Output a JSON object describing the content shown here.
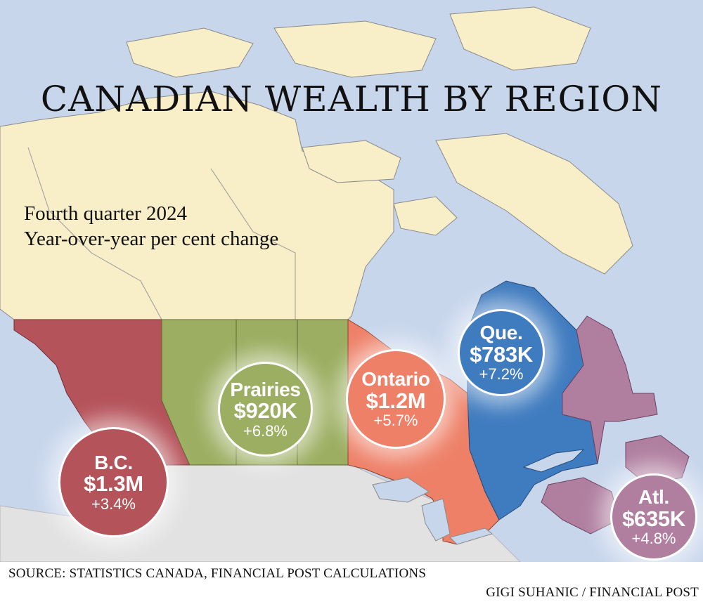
{
  "title": "CANADIAN WEALTH BY REGION",
  "subtitle_line1": "Fourth quarter 2024",
  "subtitle_line2": "Year-over-year per cent change",
  "regions": [
    {
      "id": "bc",
      "name": "B.C.",
      "value": "$1.3M",
      "change": "+3.4%",
      "color": "#b5535a"
    },
    {
      "id": "prairies",
      "name": "Prairies",
      "value": "$920K",
      "change": "+6.8%",
      "color": "#9cae61"
    },
    {
      "id": "ontario",
      "name": "Ontario",
      "value": "$1.2M",
      "change": "+5.7%",
      "color": "#ee8068"
    },
    {
      "id": "que",
      "name": "Que.",
      "value": "$783K",
      "change": "+7.2%",
      "color": "#3f7bbf"
    },
    {
      "id": "atl",
      "name": "Atl.",
      "value": "$635K",
      "change": "+4.8%",
      "color": "#b07fa0"
    }
  ],
  "colors": {
    "water": "#c8d6ec",
    "north": "#f8eec8",
    "usa": "#e2e2e2"
  },
  "source": "SOURCE: STATISTICS CANADA, FINANCIAL POST CALCULATIONS",
  "credit": "GIGI SUHANIC / FINANCIAL POST"
}
